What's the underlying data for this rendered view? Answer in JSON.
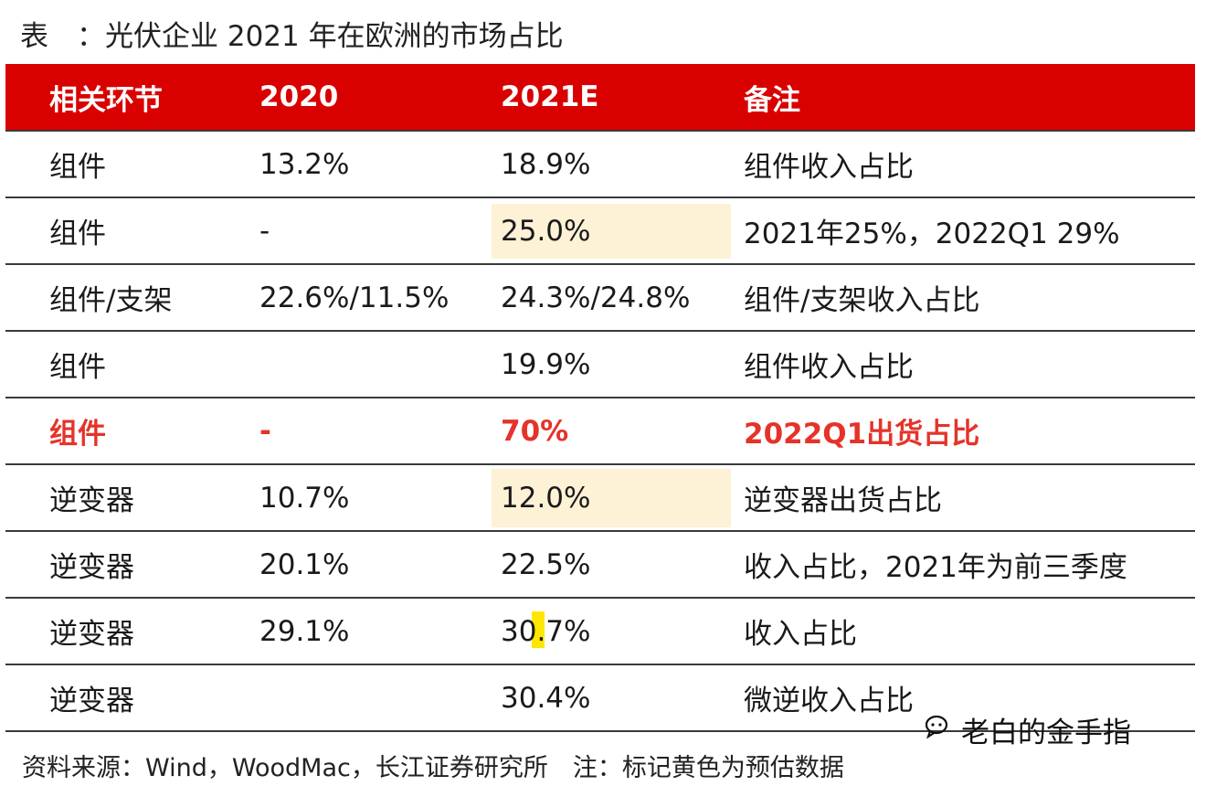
{
  "title": "表　：光伏企业 2021 年在欧洲的市场占比",
  "table": {
    "headers": [
      "相关环节",
      "2020",
      "2021E",
      "备注"
    ],
    "rows": [
      {
        "segment": "组件",
        "y2020": "13.2%",
        "y2021e": "18.9%",
        "note": "组件收入占比",
        "highlight_2021e": false,
        "emphasis": false
      },
      {
        "segment": "组件",
        "y2020": "-",
        "y2021e": "25.0%",
        "note": "2021年25%，2022Q1 29%",
        "highlight_2021e": true,
        "emphasis": false
      },
      {
        "segment": "组件/支架",
        "y2020": "22.6%/11.5%",
        "y2021e": "24.3%/24.8%",
        "note": "组件/支架收入占比",
        "highlight_2021e": false,
        "emphasis": false
      },
      {
        "segment": "组件",
        "y2020": "",
        "y2021e": "19.9%",
        "note": "组件收入占比",
        "highlight_2021e": false,
        "emphasis": false
      },
      {
        "segment": "组件",
        "y2020": "-",
        "y2021e": "70%",
        "note": "2022Q1出货占比",
        "highlight_2021e": false,
        "emphasis": true
      },
      {
        "segment": "逆变器",
        "y2020": "10.7%",
        "y2021e": "12.0%",
        "note": "逆变器出货占比",
        "highlight_2021e": true,
        "emphasis": false
      },
      {
        "segment": "逆变器",
        "y2020": "20.1%",
        "y2021e": "22.5%",
        "note": "收入占比，2021年为前三季度",
        "highlight_2021e": false,
        "emphasis": false
      },
      {
        "segment": "逆变器",
        "y2020": "29.1%",
        "y2021e": "30.7%",
        "note": "收入占比",
        "highlight_2021e": false,
        "emphasis": false
      },
      {
        "segment": "逆变器",
        "y2020": "",
        "y2021e": "30.4%",
        "note": "微逆收入占比",
        "highlight_2021e": false,
        "emphasis": false
      }
    ]
  },
  "source_note": "资料来源：Wind，WoodMac，长江证券研究所　注：标记黄色为预估数据",
  "watermark": {
    "account": "老白的金手指",
    "icon": "wechat-chat-icon"
  },
  "colors": {
    "header_bg": "#d90000",
    "emphasis_text": "#e5332a",
    "estimate_highlight": "#fdf1d6",
    "marker_yellow": "#ffe600"
  }
}
